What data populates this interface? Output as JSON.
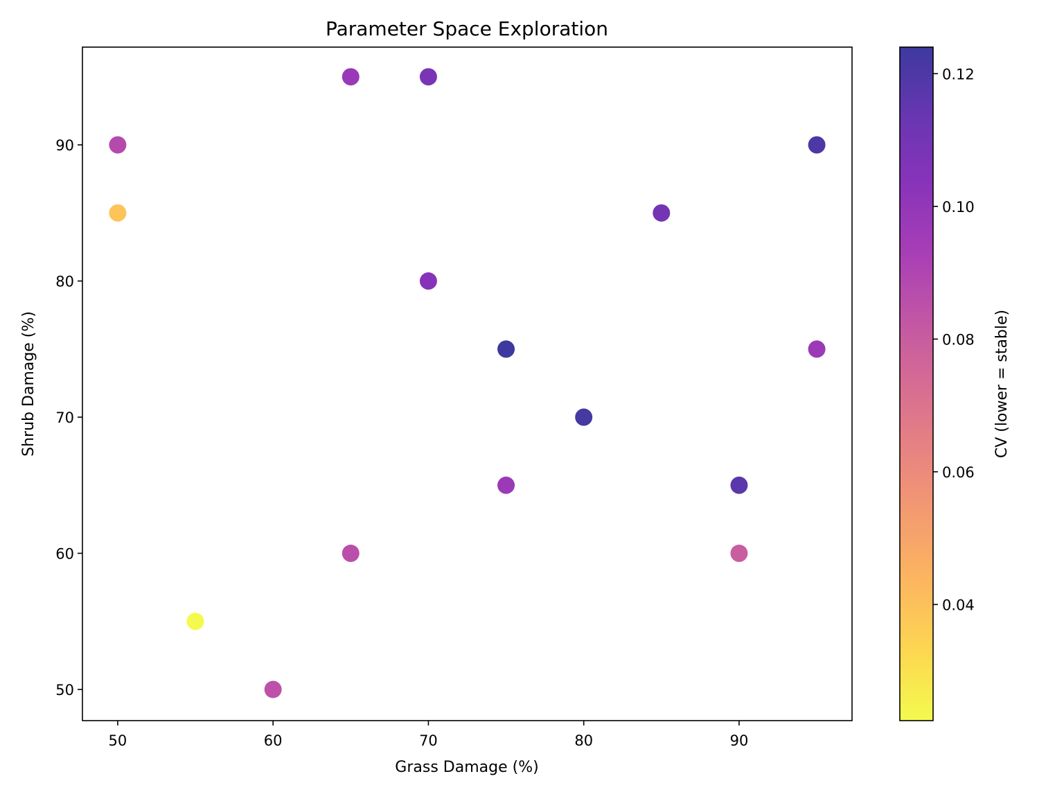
{
  "chart_data": {
    "type": "scatter",
    "title": "Parameter Space Exploration",
    "xlabel": "Grass Damage (%)",
    "ylabel": "Shrub Damage (%)",
    "xlim": [
      47.73,
      97.27
    ],
    "ylim": [
      47.71,
      97.18
    ],
    "xticks": [
      50,
      60,
      70,
      80,
      90
    ],
    "yticks": [
      50,
      60,
      70,
      80,
      90
    ],
    "grid": false,
    "colormap": "plasma_r",
    "colorbar": {
      "label": "CV (lower = stable)",
      "range": [
        0.0225,
        0.124
      ],
      "ticks": [
        0.04,
        0.06,
        0.08,
        0.1,
        0.12
      ],
      "tick_labels": [
        "0.04",
        "0.06",
        "0.08",
        "0.10",
        "0.12"
      ]
    },
    "points": [
      {
        "x": 50,
        "y": 90,
        "cv": 0.088
      },
      {
        "x": 50,
        "y": 85,
        "cv": 0.039
      },
      {
        "x": 55,
        "y": 55,
        "cv": 0.0225
      },
      {
        "x": 60,
        "y": 50,
        "cv": 0.085
      },
      {
        "x": 65,
        "y": 95,
        "cv": 0.098
      },
      {
        "x": 65,
        "y": 60,
        "cv": 0.086
      },
      {
        "x": 70,
        "y": 95,
        "cv": 0.108
      },
      {
        "x": 70,
        "y": 80,
        "cv": 0.104
      },
      {
        "x": 75,
        "y": 75,
        "cv": 0.124
      },
      {
        "x": 75,
        "y": 65,
        "cv": 0.097
      },
      {
        "x": 80,
        "y": 70,
        "cv": 0.122
      },
      {
        "x": 85,
        "y": 85,
        "cv": 0.11
      },
      {
        "x": 90,
        "y": 65,
        "cv": 0.117
      },
      {
        "x": 90,
        "y": 60,
        "cv": 0.08
      },
      {
        "x": 95,
        "y": 90,
        "cv": 0.12
      },
      {
        "x": 95,
        "y": 75,
        "cv": 0.097
      }
    ]
  }
}
